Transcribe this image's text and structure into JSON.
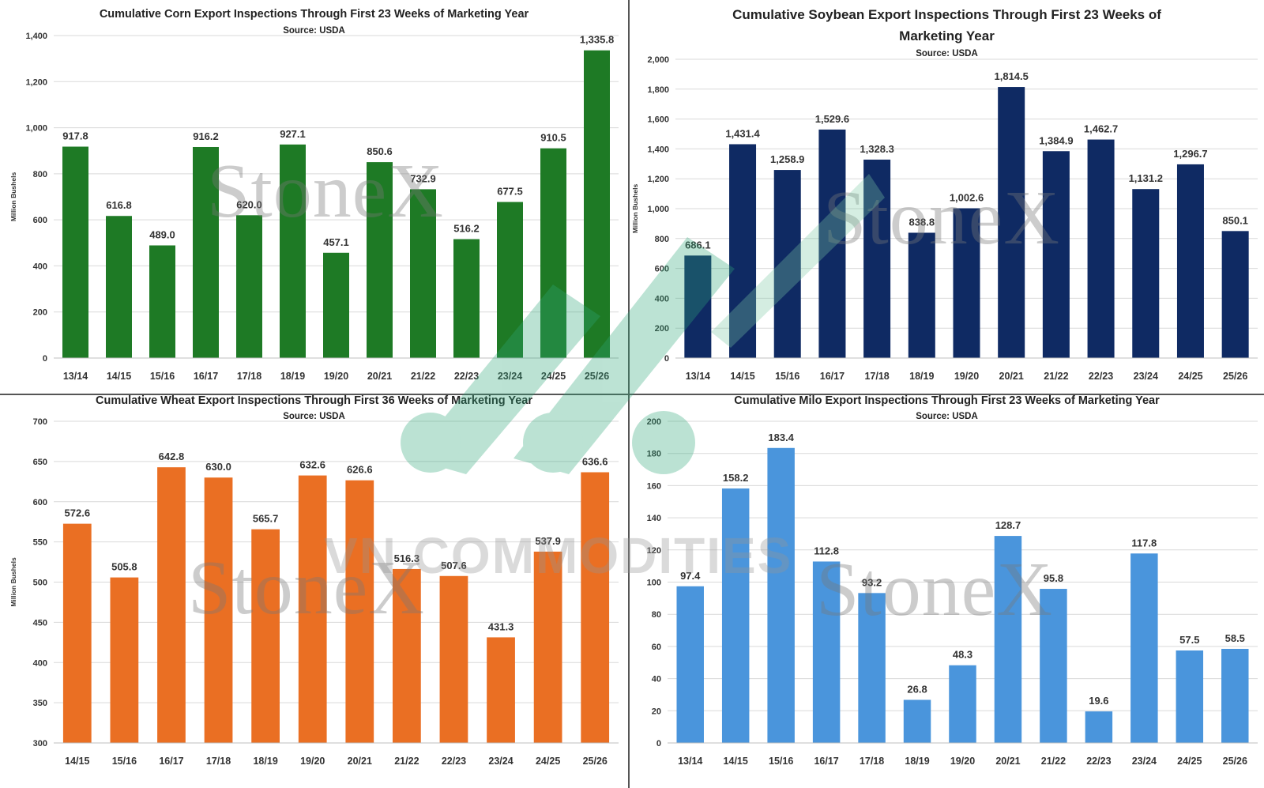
{
  "watermarks": {
    "stonex": "StoneX",
    "vn": "VN COMMODITIES"
  },
  "chart_data": [
    {
      "id": "corn",
      "type": "bar",
      "title": "Cumulative Corn Export Inspections Through First 23 Weeks of Marketing Year",
      "subtitle": "Source: USDA",
      "ylabel": "Million Bushels",
      "ylim": [
        0,
        1400
      ],
      "ytick_step": 200,
      "color": "#1e7a25",
      "categories": [
        "13/14",
        "14/15",
        "15/16",
        "16/17",
        "17/18",
        "18/19",
        "19/20",
        "20/21",
        "21/22",
        "22/23",
        "23/24",
        "24/25",
        "25/26"
      ],
      "values": [
        917.8,
        616.8,
        489.0,
        916.2,
        620.0,
        927.1,
        457.1,
        850.6,
        732.9,
        516.2,
        677.5,
        910.5,
        1335.8
      ],
      "labels": [
        "917.8",
        "616.8",
        "489.0",
        "916.2",
        "620.0",
        "927.1",
        "457.1",
        "850.6",
        "732.9",
        "516.2",
        "677.5",
        "910.5",
        "1,335.8"
      ],
      "yticks": [
        "0",
        "200",
        "400",
        "600",
        "800",
        "1,000",
        "1,200",
        "1,400"
      ]
    },
    {
      "id": "soy",
      "type": "bar",
      "title": "Cumulative Soybean Export Inspections Through First 23 Weeks of Marketing Year",
      "title_lines": [
        "Cumulative Soybean Export Inspections Through First 23 Weeks of",
        "Marketing Year"
      ],
      "subtitle": "Source: USDA",
      "ylabel": "Million Bushels",
      "ylim": [
        0,
        2000
      ],
      "ytick_step": 200,
      "color": "#0f2a63",
      "categories": [
        "13/14",
        "14/15",
        "15/16",
        "16/17",
        "17/18",
        "18/19",
        "19/20",
        "20/21",
        "21/22",
        "22/23",
        "23/24",
        "24/25",
        "25/26"
      ],
      "values": [
        686.1,
        1431.4,
        1258.9,
        1529.6,
        1328.3,
        838.8,
        1002.6,
        1814.5,
        1384.9,
        1462.7,
        1131.2,
        1296.7,
        850.1
      ],
      "labels": [
        "686.1",
        "1,431.4",
        "1,258.9",
        "1,529.6",
        "1,328.3",
        "838.8",
        "1,002.6",
        "1,814.5",
        "1,384.9",
        "1,462.7",
        "1,131.2",
        "1,296.7",
        "850.1"
      ],
      "yticks": [
        "0",
        "200",
        "400",
        "600",
        "800",
        "1,000",
        "1,200",
        "1,400",
        "1,600",
        "1,800",
        "2,000"
      ]
    },
    {
      "id": "wheat",
      "type": "bar",
      "title": "Cumulative Wheat Export Inspections Through First 36 Weeks of Marketing Year",
      "subtitle": "Source: USDA",
      "ylabel": "Million Bushels",
      "ylim": [
        300,
        700
      ],
      "ytick_step": 50,
      "color": "#ea6f23",
      "categories": [
        "14/15",
        "15/16",
        "16/17",
        "17/18",
        "18/19",
        "19/20",
        "20/21",
        "21/22",
        "22/23",
        "23/24",
        "24/25",
        "25/26"
      ],
      "values": [
        572.6,
        505.8,
        642.8,
        630.0,
        565.7,
        632.6,
        626.6,
        516.3,
        507.6,
        431.3,
        537.9,
        636.6
      ],
      "labels": [
        "572.6",
        "505.8",
        "642.8",
        "630.0",
        "565.7",
        "632.6",
        "626.6",
        "516.3",
        "507.6",
        "431.3",
        "537.9",
        "636.6"
      ],
      "yticks": [
        "300",
        "350",
        "400",
        "450",
        "500",
        "550",
        "600",
        "650",
        "700"
      ]
    },
    {
      "id": "milo",
      "type": "bar",
      "title": "Cumulative Milo Export Inspections Through First 23 Weeks of Marketing Year",
      "subtitle": "Source: USDA",
      "ylabel": "Million Bushels",
      "ylim": [
        0,
        200
      ],
      "ytick_step": 20,
      "color": "#4a95dc",
      "categories": [
        "13/14",
        "14/15",
        "15/16",
        "16/17",
        "17/18",
        "18/19",
        "19/20",
        "20/21",
        "21/22",
        "22/23",
        "23/24",
        "24/25",
        "25/26"
      ],
      "values": [
        97.4,
        158.2,
        183.4,
        112.8,
        93.2,
        26.8,
        48.3,
        128.7,
        95.8,
        19.6,
        117.8,
        57.5,
        58.5
      ],
      "labels": [
        "97.4",
        "158.2",
        "183.4",
        "112.8",
        "93.2",
        "26.8",
        "48.3",
        "128.7",
        "95.8",
        "19.6",
        "117.8",
        "57.5",
        "58.5"
      ],
      "yticks": [
        "0",
        "20",
        "40",
        "60",
        "80",
        "100",
        "120",
        "140",
        "160",
        "180",
        "200"
      ]
    }
  ]
}
